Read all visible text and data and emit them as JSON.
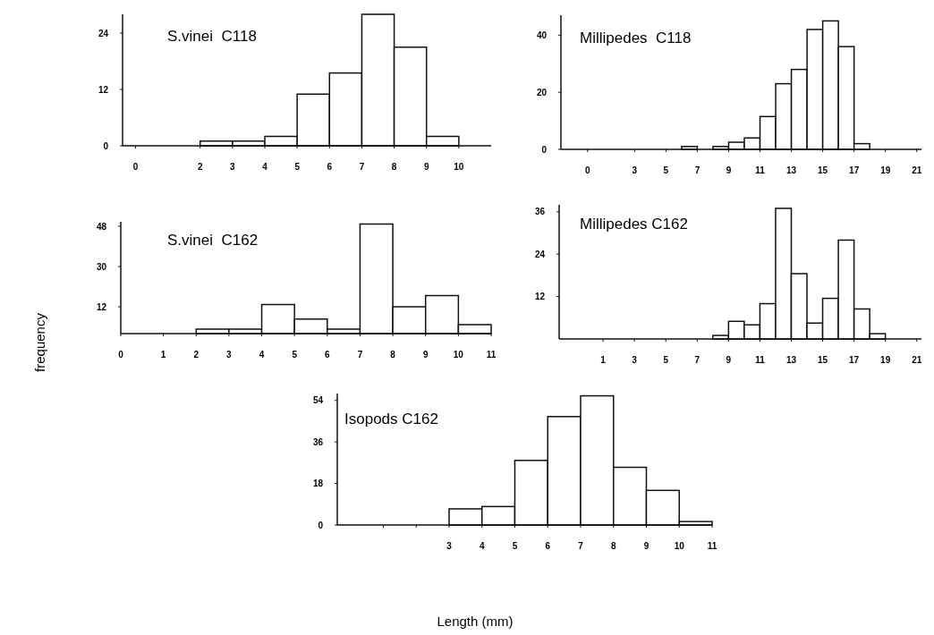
{
  "chart_data": [
    {
      "type": "histogram",
      "title": "S.vinei  C118",
      "bins": [
        2,
        3,
        4,
        5,
        6,
        7,
        8,
        9,
        10
      ],
      "values": [
        1,
        1,
        2,
        11,
        15.5,
        28,
        21,
        2
      ],
      "color": "#ffffff",
      "xlim": [
        -0.4,
        11
      ],
      "xticks": [
        0,
        2,
        3,
        4,
        5,
        6,
        7,
        8,
        9,
        10
      ],
      "ylim": [
        0,
        28
      ],
      "yticks": [
        0,
        12,
        24
      ]
    },
    {
      "type": "histogram",
      "title": "Millipedes  C118",
      "bins": [
        6,
        7,
        8,
        9,
        10,
        11,
        12,
        13,
        14,
        15,
        16,
        17,
        18
      ],
      "values": [
        1,
        0,
        1,
        2.5,
        4,
        11.5,
        23,
        28,
        42,
        45,
        36,
        2
      ],
      "color": "#ffffff",
      "xlim": [
        -1.7,
        21.3
      ],
      "xticks": [
        0,
        3,
        5,
        7,
        9,
        11,
        13,
        15,
        17,
        19,
        21
      ],
      "ylim": [
        0,
        47
      ],
      "yticks": [
        0,
        20,
        40
      ]
    },
    {
      "type": "histogram",
      "title": "S.vinei  C162",
      "ylabel": "frequency",
      "bins": [
        2,
        3,
        4,
        5,
        6,
        7,
        8,
        9,
        10,
        11
      ],
      "values": [
        2,
        2,
        13,
        6.5,
        2,
        49,
        12,
        17,
        4
      ],
      "color": "#ffffff",
      "xlim": [
        -0.3,
        11
      ],
      "xticks": [
        {
          "value": -0.3,
          "label": "0"
        },
        1,
        2,
        3,
        4,
        5,
        6,
        7,
        8,
        9,
        10,
        11
      ],
      "ylim": [
        0,
        50
      ],
      "yticks": [
        12,
        30,
        48
      ]
    },
    {
      "type": "histogram",
      "title": "Millipedes C162",
      "bins": [
        8,
        9,
        10,
        11,
        12,
        13,
        14,
        15,
        16,
        17,
        18,
        19
      ],
      "values": [
        1,
        5,
        4,
        10,
        37,
        18.5,
        4.5,
        11.5,
        28,
        8.5,
        1.5
      ],
      "color": "#ffffff",
      "xlim": [
        -1.8,
        21.3
      ],
      "xticks": [
        1,
        3,
        5,
        7,
        9,
        11,
        13,
        15,
        17,
        19,
        21
      ],
      "ylim": [
        0,
        38
      ],
      "yticks": [
        12,
        24,
        36
      ]
    },
    {
      "type": "histogram",
      "title": "Isopods C162",
      "xlabel": "Length (mm)",
      "bins": [
        3,
        4,
        5,
        6,
        7,
        8,
        9,
        10,
        11
      ],
      "values": [
        7,
        8,
        28,
        47,
        56,
        25,
        15,
        1.5
      ],
      "color": "#ffffff",
      "xlim": [
        -0.4,
        11
      ],
      "xticks": [
        {
          "value": 1,
          "label": null
        },
        {
          "value": 2,
          "label": null
        },
        3,
        4,
        5,
        6,
        7,
        8,
        9,
        10,
        11
      ],
      "ylim": [
        0,
        57
      ],
      "yticks": [
        0,
        18,
        36,
        54
      ]
    }
  ]
}
